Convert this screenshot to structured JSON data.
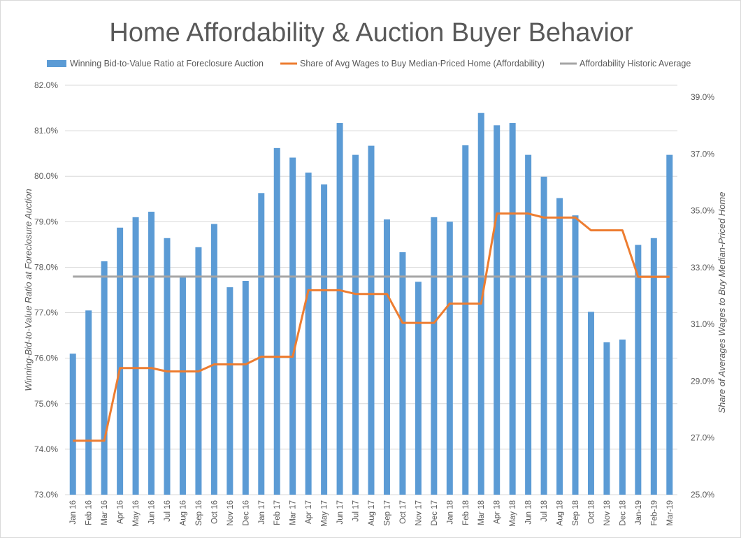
{
  "chart_data": {
    "type": "bar+line",
    "title": "Home Affordability & Auction Buyer Behavior",
    "categories": [
      "Jan 16",
      "Feb 16",
      "Mar 16",
      "Apr 16",
      "May 16",
      "Jun 16",
      "Jul 16",
      "Aug 16",
      "Sep 16",
      "Oct 16",
      "Nov 16",
      "Dec 16",
      "Jan 17",
      "Feb 17",
      "Mar 17",
      "Apr 17",
      "May 17",
      "Jun 17",
      "Jul 17",
      "Aug 17",
      "Sep 17",
      "Oct 17",
      "Nov 17",
      "Dec 17",
      "Jan 18",
      "Feb 18",
      "Mar 18",
      "Apr 18",
      "May 18",
      "Jun 18",
      "Jul 18",
      "Aug 18",
      "Sep 18",
      "Oct 18",
      "Nov 18",
      "Dec 18",
      "Jan-19",
      "Feb-19",
      "Mar-19"
    ],
    "series": [
      {
        "name": "Winning Bid-to-Value Ratio at Foreclosure Auction",
        "type": "bar",
        "axis": "left",
        "color": "#5b9bd5",
        "values": [
          76.1,
          77.05,
          78.13,
          78.87,
          79.1,
          79.22,
          78.64,
          77.78,
          78.44,
          78.95,
          77.56,
          77.7,
          79.63,
          80.62,
          80.41,
          80.08,
          79.82,
          81.17,
          80.47,
          80.67,
          79.05,
          78.33,
          77.68,
          79.1,
          79.0,
          80.68,
          81.39,
          81.12,
          81.17,
          80.47,
          79.99,
          79.52,
          79.14,
          77.02,
          76.35,
          76.41,
          78.49,
          78.64,
          80.47
        ]
      },
      {
        "name": "Share of Avg Wages to Buy Median-Priced Home (Affordability)",
        "type": "line",
        "axis": "right",
        "color": "#ed7d31",
        "values": [
          26.9,
          26.9,
          26.9,
          29.46,
          29.46,
          29.46,
          29.34,
          29.34,
          29.34,
          29.59,
          29.59,
          29.59,
          29.86,
          29.86,
          29.86,
          32.2,
          32.2,
          32.2,
          32.07,
          32.07,
          32.07,
          31.05,
          31.05,
          31.05,
          31.73,
          31.73,
          31.73,
          34.9,
          34.9,
          34.9,
          34.76,
          34.76,
          34.76,
          34.31,
          34.31,
          34.31,
          32.67,
          32.67,
          32.67
        ]
      },
      {
        "name": "Affordability Historic Average",
        "type": "line",
        "axis": "right",
        "color": "#a5a5a5",
        "values_constant": 32.68
      }
    ],
    "ylabel": "Winning-Bid-to-Value Ratio at Foreclosure Auction",
    "y2label": "Share of Averages Wages to Buy Median-Priced Home",
    "ylim": [
      73,
      82
    ],
    "y2lim": [
      25,
      39.42
    ],
    "yticks": [
      "73.0%",
      "74.0%",
      "75.0%",
      "76.0%",
      "77.0%",
      "78.0%",
      "79.0%",
      "80.0%",
      "81.0%",
      "82.0%"
    ],
    "y2ticks": [
      "25.0%",
      "27.0%",
      "29.0%",
      "31.0%",
      "33.0%",
      "35.0%",
      "37.0%",
      "39.0%"
    ],
    "grid": true,
    "legend": "top"
  }
}
